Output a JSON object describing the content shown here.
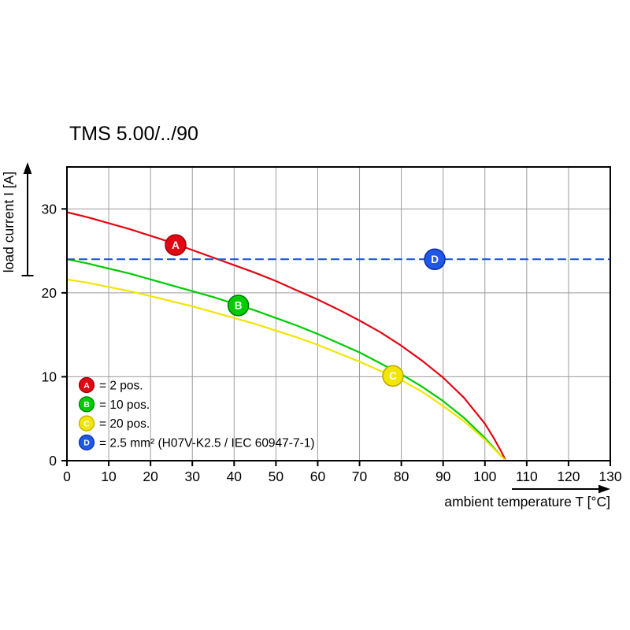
{
  "title": "TMS 5.00/../90",
  "chart_data": {
    "type": "line",
    "title": "TMS 5.00/../90",
    "xlabel": "ambient temperature T [°C]",
    "ylabel": "load current I [A]",
    "xlim": [
      0,
      130
    ],
    "ylim": [
      0,
      35
    ],
    "xticks": [
      0,
      10,
      20,
      30,
      40,
      50,
      60,
      70,
      80,
      90,
      100,
      110,
      120,
      130
    ],
    "yticks": [
      0,
      10,
      20,
      30
    ],
    "grid": true,
    "legend_position": "inside-bottom-left",
    "style": {
      "grid_color": "#9c9c9c",
      "axis_color": "#000000",
      "background": "#ffffff",
      "marker_letter_color": "#ffffff"
    },
    "series": [
      {
        "name": "A",
        "legend_label": "= 2 pos.",
        "color": "#e30613",
        "edge": "#9e0008",
        "dashed": false,
        "marker_at": [
          26,
          25.7
        ],
        "points": [
          [
            0,
            29.6
          ],
          [
            5,
            29.0
          ],
          [
            10,
            28.3
          ],
          [
            15,
            27.6
          ],
          [
            20,
            26.8
          ],
          [
            25,
            26.0
          ],
          [
            30,
            25.1
          ],
          [
            35,
            24.2
          ],
          [
            40,
            23.3
          ],
          [
            45,
            22.4
          ],
          [
            50,
            21.4
          ],
          [
            55,
            20.3
          ],
          [
            60,
            19.2
          ],
          [
            65,
            18.0
          ],
          [
            70,
            16.7
          ],
          [
            75,
            15.3
          ],
          [
            80,
            13.7
          ],
          [
            85,
            11.9
          ],
          [
            90,
            9.9
          ],
          [
            95,
            7.5
          ],
          [
            100,
            4.4
          ],
          [
            102,
            2.8
          ],
          [
            104,
            1.0
          ],
          [
            105,
            0
          ]
        ]
      },
      {
        "name": "B",
        "legend_label": "= 10 pos.",
        "color": "#00cc00",
        "edge": "#007a00",
        "dashed": false,
        "marker_at": [
          41,
          18.5
        ],
        "points": [
          [
            0,
            24.0
          ],
          [
            5,
            23.5
          ],
          [
            10,
            22.9
          ],
          [
            15,
            22.3
          ],
          [
            20,
            21.6
          ],
          [
            25,
            20.9
          ],
          [
            30,
            20.2
          ],
          [
            35,
            19.5
          ],
          [
            40,
            18.7
          ],
          [
            45,
            17.9
          ],
          [
            50,
            17.0
          ],
          [
            55,
            16.1
          ],
          [
            60,
            15.1
          ],
          [
            65,
            14.0
          ],
          [
            70,
            12.9
          ],
          [
            75,
            11.6
          ],
          [
            80,
            10.3
          ],
          [
            85,
            8.8
          ],
          [
            90,
            7.1
          ],
          [
            95,
            5.1
          ],
          [
            100,
            2.7
          ],
          [
            102,
            1.6
          ],
          [
            104,
            0.5
          ],
          [
            105,
            0
          ]
        ]
      },
      {
        "name": "C",
        "legend_label": "= 20 pos.",
        "color": "#f2e500",
        "edge": "#b8a800",
        "dashed": false,
        "marker_at": [
          78,
          10.1
        ],
        "points": [
          [
            0,
            21.6
          ],
          [
            5,
            21.2
          ],
          [
            10,
            20.7
          ],
          [
            15,
            20.2
          ],
          [
            20,
            19.6
          ],
          [
            25,
            19.0
          ],
          [
            30,
            18.4
          ],
          [
            35,
            17.7
          ],
          [
            40,
            17.0
          ],
          [
            45,
            16.3
          ],
          [
            50,
            15.5
          ],
          [
            55,
            14.7
          ],
          [
            60,
            13.8
          ],
          [
            65,
            12.8
          ],
          [
            70,
            11.8
          ],
          [
            75,
            10.7
          ],
          [
            80,
            9.6
          ],
          [
            85,
            8.2
          ],
          [
            90,
            6.5
          ],
          [
            95,
            4.7
          ],
          [
            100,
            2.5
          ],
          [
            102,
            1.5
          ],
          [
            104,
            0.5
          ],
          [
            105,
            0
          ]
        ]
      },
      {
        "name": "D",
        "legend_label": "= 2.5 mm² (H07V-K2.5 / IEC 60947-7-1)",
        "color": "#1f57e6",
        "edge": "#0c2fa8",
        "dashed": true,
        "marker_at": [
          88,
          24
        ],
        "points": [
          [
            0,
            24
          ],
          [
            130,
            24
          ]
        ]
      }
    ]
  }
}
